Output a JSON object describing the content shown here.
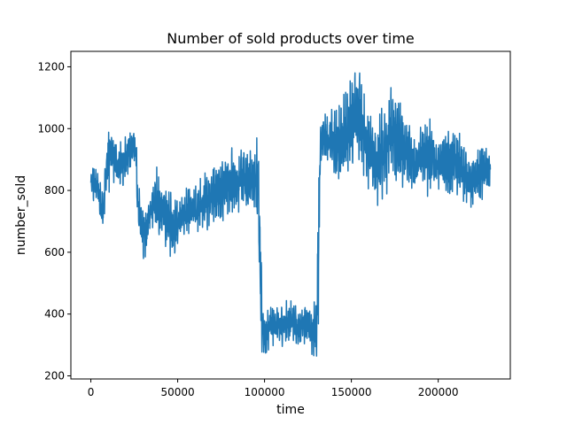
{
  "chart_data": {
    "type": "line",
    "title": "Number of sold products over time",
    "xlabel": "time",
    "ylabel": "number_sold",
    "xlim": [
      -11500,
      241500
    ],
    "ylim": [
      190,
      1250
    ],
    "x_ticks": [
      0,
      50000,
      100000,
      150000,
      200000
    ],
    "x_tick_labels": [
      "0",
      "50000",
      "100000",
      "150000",
      "200000"
    ],
    "y_ticks": [
      200,
      400,
      600,
      800,
      1000,
      1200
    ],
    "y_tick_labels": [
      "200",
      "400",
      "600",
      "800",
      "1000",
      "1200"
    ],
    "grid": false,
    "legend": "none",
    "color": "#1f77b4",
    "approximate_range_envelope": {
      "x": [
        0,
        1000,
        2000,
        3000,
        4000,
        5000,
        6000,
        7000,
        8000,
        10000,
        12000,
        14000,
        16000,
        18000,
        20000,
        22000,
        24000,
        25000,
        26000,
        26500,
        27000,
        28000,
        29000,
        30000,
        31000,
        33000,
        35000,
        37000,
        39000,
        41000,
        43000,
        45000,
        47000,
        50000,
        53000,
        56000,
        59000,
        62000,
        65000,
        68000,
        71000,
        74000,
        77000,
        80000,
        83000,
        86000,
        89000,
        92000,
        95000,
        96500,
        97000,
        98000,
        98500,
        100000,
        101000,
        102000,
        104000,
        106000,
        108000,
        110000,
        112000,
        114000,
        116000,
        118000,
        120000,
        122000,
        124000,
        126000,
        128000,
        129500,
        130000,
        131000,
        132000,
        133000,
        135000,
        137000,
        139000,
        141000,
        143000,
        145000,
        147000,
        149000,
        151000,
        153000,
        155000,
        156000,
        157000,
        159000,
        161000,
        163000,
        165000,
        167000,
        169000,
        171000,
        173000,
        175000,
        177000,
        179000,
        181000,
        183000,
        185000,
        187000,
        189000,
        191000,
        193000,
        195000,
        197000,
        199000,
        201000,
        203000,
        205000,
        207000,
        209000,
        211000,
        213000,
        215000,
        217000,
        219000,
        221000,
        223000,
        225000,
        227000,
        229000,
        230000
      ],
      "low": [
        780,
        760,
        745,
        740,
        760,
        700,
        680,
        640,
        720,
        760,
        790,
        800,
        790,
        800,
        810,
        830,
        850,
        860,
        820,
        700,
        640,
        620,
        600,
        580,
        550,
        620,
        660,
        640,
        620,
        600,
        590,
        570,
        560,
        600,
        640,
        650,
        630,
        640,
        650,
        670,
        690,
        680,
        700,
        690,
        710,
        720,
        700,
        690,
        680,
        660,
        350,
        300,
        260,
        250,
        240,
        270,
        280,
        290,
        300,
        290,
        280,
        290,
        300,
        290,
        280,
        300,
        290,
        270,
        250,
        250,
        240,
        260,
        820,
        880,
        870,
        860,
        820,
        790,
        780,
        800,
        830,
        850,
        860,
        880,
        870,
        850,
        830,
        810,
        790,
        760,
        740,
        750,
        760,
        780,
        800,
        790,
        780,
        800,
        810,
        800,
        790,
        780,
        790,
        800,
        780,
        770,
        760,
        780,
        790,
        770,
        760,
        750,
        760,
        770,
        760,
        750,
        740,
        720,
        730,
        750,
        760,
        770,
        780,
        790
      ],
      "high": [
        860,
        890,
        900,
        880,
        870,
        850,
        820,
        800,
        900,
        1040,
        1050,
        1000,
        960,
        980,
        990,
        1000,
        1010,
        1050,
        1060,
        960,
        860,
        820,
        780,
        760,
        740,
        780,
        860,
        900,
        880,
        860,
        850,
        830,
        800,
        780,
        800,
        820,
        830,
        840,
        860,
        880,
        900,
        920,
        950,
        960,
        940,
        950,
        960,
        960,
        980,
        1000,
        1000,
        700,
        450,
        420,
        430,
        440,
        450,
        440,
        430,
        440,
        450,
        460,
        450,
        440,
        430,
        450,
        440,
        430,
        440,
        460,
        480,
        900,
        1000,
        1050,
        1060,
        1080,
        1080,
        1100,
        1120,
        1140,
        1160,
        1180,
        1190,
        1200,
        1210,
        1190,
        1150,
        1100,
        1050,
        1030,
        1040,
        1080,
        1100,
        1130,
        1160,
        1150,
        1120,
        1100,
        1060,
        1040,
        1000,
        980,
        1000,
        1040,
        1060,
        1050,
        1030,
        1000,
        980,
        1000,
        1020,
        1030,
        1020,
        1010,
        980,
        960,
        940,
        930,
        940,
        950,
        960,
        960,
        950,
        940
      ]
    }
  }
}
